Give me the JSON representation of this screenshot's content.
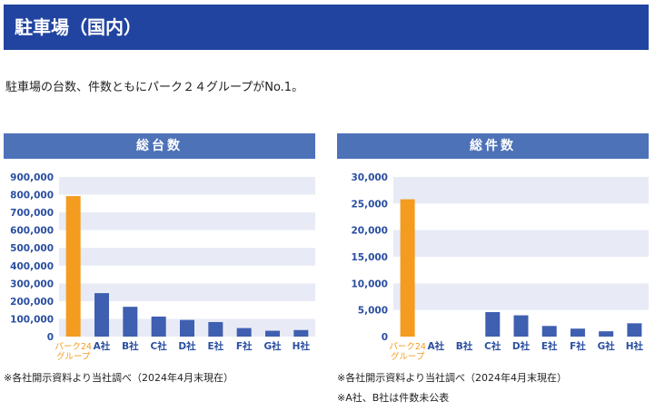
{
  "header": {
    "title": "駐車場（国内）"
  },
  "intro": {
    "text": "駐車場の台数、件数ともにパーク２４グループがNo.1。"
  },
  "colors": {
    "header_bg": "#2144a0",
    "panel_title_bg": "#4d72b8",
    "band": "#e8ebf6",
    "highlight": "#f39c1f",
    "bar": "#3f5fb0",
    "tick_text": "#2a4ea0",
    "highlight_text": "#f39c1f"
  },
  "chart_data": [
    {
      "type": "bar",
      "title": "総台数",
      "categories": [
        "パーク24グループ",
        "A社",
        "B社",
        "C社",
        "D社",
        "E社",
        "F社",
        "G社",
        "H社"
      ],
      "category_lines": [
        [
          "パーク24",
          "グループ"
        ],
        [
          "A社"
        ],
        [
          "B社"
        ],
        [
          "C社"
        ],
        [
          "D社"
        ],
        [
          "E社"
        ],
        [
          "F社"
        ],
        [
          "G社"
        ],
        [
          "H社"
        ]
      ],
      "values": [
        792000,
        245000,
        168000,
        113000,
        94000,
        82000,
        48000,
        33000,
        37000
      ],
      "yticks": [
        "900,000",
        "800,000",
        "700,000",
        "600,000",
        "500,000",
        "400,000",
        "300,000",
        "200,000",
        "100,000",
        "0"
      ],
      "ylim": [
        0,
        900000
      ],
      "tick_step": 100000,
      "highlight_index": 0,
      "xlabel": "",
      "ylabel": ""
    },
    {
      "type": "bar",
      "title": "総件数",
      "categories": [
        "パーク24グループ",
        "A社",
        "B社",
        "C社",
        "D社",
        "E社",
        "F社",
        "G社",
        "H社"
      ],
      "category_lines": [
        [
          "パーク24",
          "グループ"
        ],
        [
          "A社"
        ],
        [
          "B社"
        ],
        [
          "C社"
        ],
        [
          "D社"
        ],
        [
          "E社"
        ],
        [
          "F社"
        ],
        [
          "G社"
        ],
        [
          "H社"
        ]
      ],
      "values": [
        25800,
        null,
        null,
        4600,
        4000,
        2000,
        1500,
        1000,
        2500
      ],
      "yticks": [
        "30,000",
        "25,000",
        "20,000",
        "15,000",
        "10,000",
        "5,000",
        "0"
      ],
      "ylim": [
        0,
        30000
      ],
      "tick_step": 5000,
      "highlight_index": 0,
      "xlabel": "",
      "ylabel": ""
    }
  ],
  "notes": {
    "left": "※各社開示資料より当社調べ（2024年4月末現在）",
    "right1": "※各社開示資料より当社調べ（2024年4月末現在）",
    "right2": "※A社、B社は件数未公表"
  }
}
